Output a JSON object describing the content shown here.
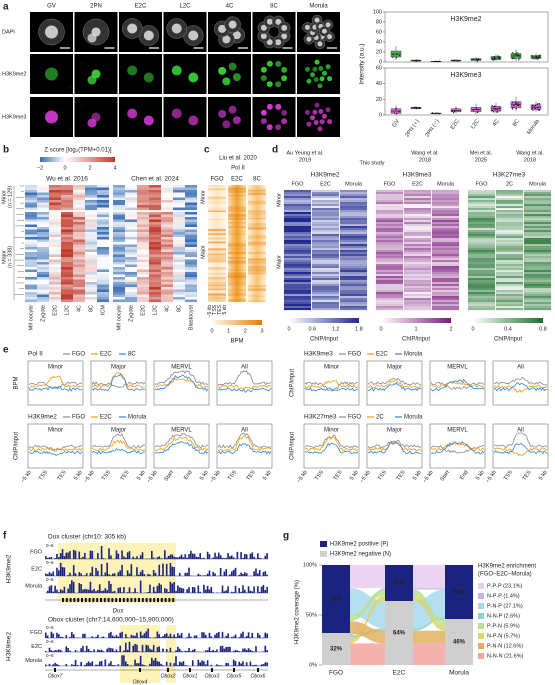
{
  "a": {
    "letter": "a",
    "columns": [
      "GV",
      "2PN",
      "E2C",
      "L2C",
      "4C",
      "8C",
      "Morula"
    ],
    "rows": [
      "DAPI",
      "H3K9me2",
      "H3K9me3"
    ],
    "male": "♂",
    "female": "♀",
    "plots": [
      "H3K9me2",
      "H3K9me3"
    ],
    "y_label": "Intensity (a.u.)",
    "upper_ticks": [
      "0",
      "20",
      "40",
      "60",
      "80",
      "100"
    ],
    "lower_ticks": [
      "0",
      "20",
      "40",
      "60"
    ],
    "x_labels": [
      "GV",
      "2PN (♀)",
      "2PN (♂)",
      "E2C",
      "L2C",
      "4C",
      "8C",
      "Morula"
    ]
  },
  "b": {
    "letter": "b",
    "scale_title": "Z score [log₂(TPM+0.01)]",
    "scale_ticks": [
      "−2",
      "0",
      "2",
      "4"
    ],
    "datasets": [
      "Wu et al. 2016",
      "Chen et al. 2024"
    ],
    "groups": [
      [
        "Minor",
        "(n = 129)"
      ],
      [
        "Major",
        "(n = 338)"
      ]
    ],
    "stages": [
      [
        "MII oocyte",
        "Zygote",
        "E2C",
        "L2C",
        "4C",
        "8C",
        "ICM"
      ],
      [
        "MII oocyte",
        "Zygote",
        "E2C",
        "L2C",
        "4C",
        "8C",
        "Blastocyst"
      ]
    ]
  },
  "c": {
    "letter": "c",
    "source": "Liu et al. 2020",
    "mark": "Pol II",
    "samples": [
      "FGO",
      "E2C",
      "8C"
    ],
    "groups": [
      "Minor",
      "Major"
    ],
    "positions": [
      "−5 kb",
      "TSS",
      "TES",
      "5 kb"
    ],
    "scale_ticks": [
      "0",
      "1",
      "2",
      "3"
    ],
    "scale_label": "BPM"
  },
  "d": {
    "letter": "d",
    "sources": [
      [
        "Au Yeung et al.",
        "2019"
      ],
      [
        "This study"
      ],
      [
        "Wang et al.",
        "2018"
      ],
      [
        "Mei et al.",
        "2025"
      ],
      [
        "Wang et al.",
        "2018"
      ]
    ],
    "marks": [
      "H3K9me2",
      "H3K9me3",
      "H3K27me3"
    ],
    "samples": [
      [
        "FGO",
        "E2C",
        "Morula"
      ],
      [
        "FGO",
        "E2C",
        "Morula"
      ],
      [
        "FGO",
        "2C",
        "Morula"
      ]
    ],
    "groups": [
      "Minor",
      "Major"
    ],
    "scales": [
      {
        "ticks": [
          "0",
          "0.6",
          "1.2",
          "1.8"
        ],
        "label": "ChIP/input"
      },
      {
        "ticks": [
          "0",
          "1",
          "2"
        ],
        "label": "ChIP/input"
      },
      {
        "ticks": [
          "0",
          "0.4",
          "0.8"
        ],
        "label": "ChIP/input"
      }
    ]
  },
  "e": {
    "letter": "e",
    "rows": [
      {
        "mark": "Pol II",
        "legend": [
          "FGO",
          "E2C",
          "8C"
        ],
        "y_label": "BPM"
      },
      {
        "mark": "H3K9me2",
        "legend": [
          "FGO",
          "E2C",
          "Morula"
        ],
        "y_label": "ChIP/input"
      },
      {
        "mark": "H3K9me3",
        "legend": [
          "FGO",
          "E2C",
          "Morula"
        ],
        "y_label": "ChIP/input"
      },
      {
        "mark": "H3K27me3",
        "legend": [
          "FGO",
          "2C",
          "Morula"
        ],
        "y_label": "ChIP/input"
      }
    ],
    "regions": [
      "Minor",
      "Major",
      "MERVL",
      "All"
    ],
    "gene_positions": [
      "−5 kb",
      "TSS",
      "TES",
      "5 kb"
    ],
    "mervl_positions": [
      "−5 kb",
      "Start",
      "End",
      "5 kb"
    ]
  },
  "f": {
    "letter": "f",
    "loci": [
      {
        "title": "Dux cluster (chr10: 305 kb)",
        "mark": "H3K9me2",
        "samples": [
          "FGO",
          "E2C",
          "Morula"
        ],
        "range": "0–6",
        "genes": [
          "Dux"
        ]
      },
      {
        "title": "Obox cluster (chr7:14,600,000–15,900,000)",
        "mark": "H3K9me2",
        "samples": [
          "FGO",
          "E2C",
          "Morula"
        ],
        "range": "0–6",
        "genes": [
          "Obox7",
          "Obox2",
          "Obox1",
          "Obox3",
          "Obox5",
          "Obox6",
          "Obox4"
        ]
      }
    ]
  },
  "g": {
    "letter": "g",
    "legend": [
      "H3K9me2 positive (P)",
      "H3K9me2 negative (N)"
    ],
    "y_label": "H3K9me2 coverage (%)",
    "yticks": [
      {
        "value": 0,
        "label": "0%"
      },
      {
        "value": 50,
        "label": "50%"
      },
      {
        "value": 100,
        "label": "100%"
      }
    ],
    "bars": [
      {
        "name": "FGO",
        "positive": 68,
        "positive_label": "68%",
        "negative": 32,
        "negative_label": "32%"
      },
      {
        "name": "E2C",
        "positive": 36,
        "positive_label": "36%",
        "negative": 64,
        "negative_label": "64%"
      },
      {
        "name": "Morula",
        "positive": 54,
        "positive_label": "54%",
        "negative": 46,
        "negative_label": "46%"
      }
    ],
    "enrichment_title": [
      "H3K9me2 enrichment",
      "(FGO–E2C–Morula)"
    ],
    "enrichment": [
      {
        "label": "P-P-P (23.1%)",
        "value": 23.1
      },
      {
        "label": "N-P-P (1.4%)",
        "value": 1.4
      },
      {
        "label": "P-N-P (27.1%)",
        "value": 27.1
      },
      {
        "label": "N-N-P (2.6%)",
        "value": 2.6
      },
      {
        "label": "P-P-N (5.9%)",
        "value": 5.9
      },
      {
        "label": "N-P-N (5.7%)",
        "value": 5.7
      },
      {
        "label": "P-N-N (12.6%)",
        "value": 12.6
      },
      {
        "label": "N-N-N (21.6%)",
        "value": 21.6
      }
    ]
  }
}
